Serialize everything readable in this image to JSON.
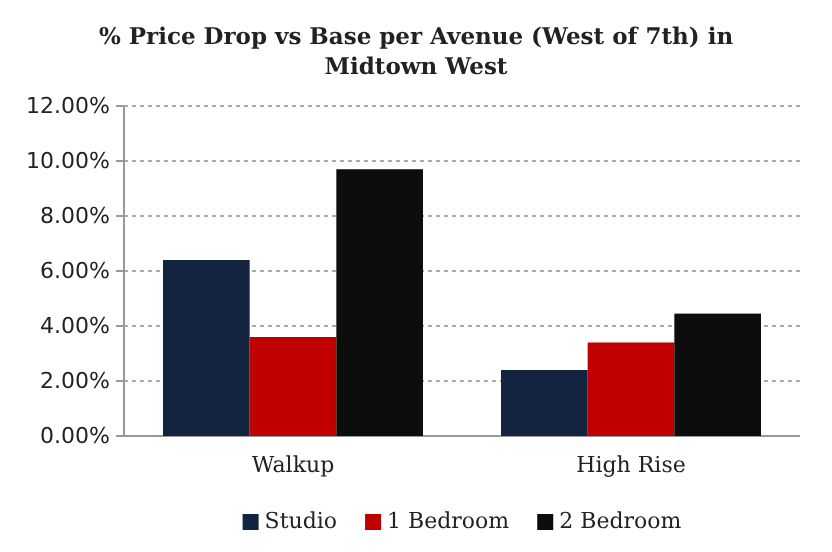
{
  "chart_data": {
    "type": "bar",
    "title": "% Price Drop vs Base per Avenue (West of 7th) in Midtown West",
    "categories": [
      "Walkup",
      "High Rise"
    ],
    "series": [
      {
        "name": "Studio",
        "color": "#12243f",
        "values": [
          6.4,
          2.4
        ]
      },
      {
        "name": "1 Bedroom",
        "color": "#c00000",
        "values": [
          3.6,
          3.4
        ]
      },
      {
        "name": "2 Bedroom",
        "color": "#0d0d0d",
        "values": [
          9.7,
          4.45
        ]
      }
    ],
    "ylim": [
      0,
      12
    ],
    "yticks": [
      {
        "value": 0,
        "label": "0.00%"
      },
      {
        "value": 2,
        "label": "2.00%"
      },
      {
        "value": 4,
        "label": "4.00%"
      },
      {
        "value": 6,
        "label": "6.00%"
      },
      {
        "value": 8,
        "label": "8.00%"
      },
      {
        "value": 10,
        "label": "10.00%"
      },
      {
        "value": 12,
        "label": "12.00%"
      }
    ],
    "grid": "y",
    "legend": "bottom"
  }
}
